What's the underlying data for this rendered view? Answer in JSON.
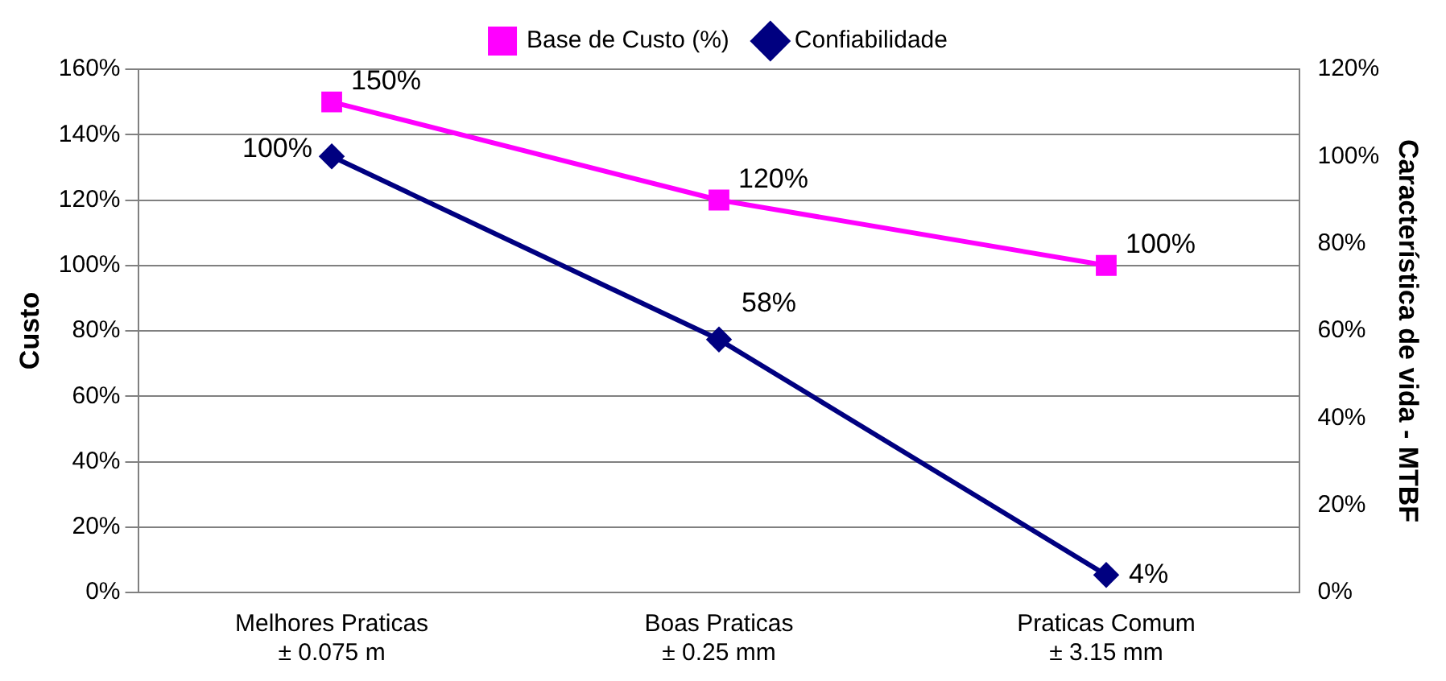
{
  "chart_data": {
    "type": "line",
    "categories": [
      "Melhores Praticas\n± 0.075 m",
      "Boas Praticas\n± 0.25 mm",
      "Praticas Comum\n± 3.15 mm"
    ],
    "series": [
      {
        "name": "Base de Custo (%)",
        "color": "#ff00ff",
        "values": [
          150,
          120,
          100
        ],
        "marker": "square",
        "value_labels": [
          "150%",
          "120%",
          "100%"
        ]
      },
      {
        "name": "Confiabilidade",
        "color": "#000080",
        "values": [
          100,
          58,
          4
        ],
        "axis": "y2",
        "marker": "diamond",
        "value_labels": [
          "100%",
          "58%",
          "4%"
        ]
      }
    ],
    "ylabel": "Custo",
    "y2label": "Característica de vida - MTBF",
    "ylim": [
      0,
      160
    ],
    "yticks": [
      {
        "value": 0,
        "label": "0%"
      },
      {
        "value": 20,
        "label": "20%"
      },
      {
        "value": 40,
        "label": "40%"
      },
      {
        "value": 60,
        "label": "60%"
      },
      {
        "value": 80,
        "label": "80%"
      },
      {
        "value": 100,
        "label": "100%"
      },
      {
        "value": 120,
        "label": "120%"
      },
      {
        "value": 140,
        "label": "140%"
      },
      {
        "value": 160,
        "label": "160%"
      }
    ],
    "y2lim": [
      0,
      120
    ],
    "y2ticks": [
      {
        "value": 0,
        "label": "0%"
      },
      {
        "value": 20,
        "label": "20%"
      },
      {
        "value": 40,
        "label": "40%"
      },
      {
        "value": 60,
        "label": "60%"
      },
      {
        "value": 80,
        "label": "80%"
      },
      {
        "value": 100,
        "label": "100%"
      },
      {
        "value": 120,
        "label": "120%"
      }
    ],
    "grid": "y",
    "legend": "top",
    "line_style": "solid"
  }
}
